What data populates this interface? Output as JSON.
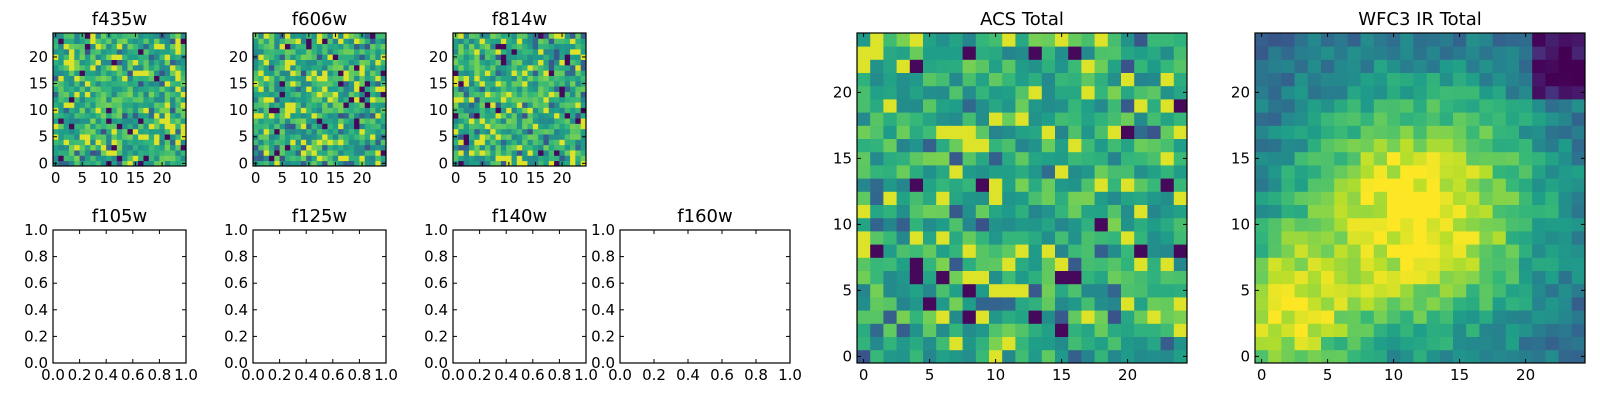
{
  "figure": {
    "title": ""
  },
  "chart_data": [
    {
      "type": "heatmap",
      "title": "f435w",
      "xlim": [
        0,
        24
      ],
      "ylim": [
        0,
        24
      ],
      "xticks": [
        "0",
        "5",
        "10",
        "15",
        "20"
      ],
      "yticks": [
        "0",
        "5",
        "10",
        "15",
        "20"
      ],
      "colormap": "viridis",
      "grid_size": 25,
      "texture": "noisy",
      "seed": 11,
      "empty": false
    },
    {
      "type": "heatmap",
      "title": "f606w",
      "xlim": [
        0,
        24
      ],
      "ylim": [
        0,
        24
      ],
      "xticks": [
        "0",
        "5",
        "10",
        "15",
        "20"
      ],
      "yticks": [
        "0",
        "5",
        "10",
        "15",
        "20"
      ],
      "colormap": "viridis",
      "grid_size": 25,
      "texture": "noisy",
      "seed": 23,
      "empty": false
    },
    {
      "type": "heatmap",
      "title": "f814w",
      "xlim": [
        0,
        24
      ],
      "ylim": [
        0,
        24
      ],
      "xticks": [
        "0",
        "5",
        "10",
        "15",
        "20"
      ],
      "yticks": [
        "0",
        "5",
        "10",
        "15",
        "20"
      ],
      "colormap": "viridis",
      "grid_size": 25,
      "texture": "noisy",
      "seed": 37,
      "empty": false
    },
    {
      "type": "line",
      "title": "f105w",
      "xlim": [
        0.0,
        1.0
      ],
      "ylim": [
        0.0,
        1.0
      ],
      "xticks": [
        "0.0",
        "0.2",
        "0.4",
        "0.6",
        "0.8",
        "1.0"
      ],
      "yticks": [
        "0.0",
        "0.2",
        "0.4",
        "0.6",
        "0.8",
        "1.0"
      ],
      "series": [],
      "empty": true
    },
    {
      "type": "line",
      "title": "f125w",
      "xlim": [
        0.0,
        1.0
      ],
      "ylim": [
        0.0,
        1.0
      ],
      "xticks": [
        "0.0",
        "0.2",
        "0.4",
        "0.6",
        "0.8",
        "1.0"
      ],
      "yticks": [
        "0.0",
        "0.2",
        "0.4",
        "0.6",
        "0.8",
        "1.0"
      ],
      "series": [],
      "empty": true
    },
    {
      "type": "line",
      "title": "f140w",
      "xlim": [
        0.0,
        1.0
      ],
      "ylim": [
        0.0,
        1.0
      ],
      "xticks": [
        "0.0",
        "0.2",
        "0.4",
        "0.6",
        "0.8",
        "1.0"
      ],
      "yticks": [
        "0.0",
        "0.2",
        "0.4",
        "0.6",
        "0.8",
        "1.0"
      ],
      "series": [],
      "empty": true
    },
    {
      "type": "line",
      "title": "f160w",
      "xlim": [
        0.0,
        1.0
      ],
      "ylim": [
        0.0,
        1.0
      ],
      "xticks": [
        "0.0",
        "0.2",
        "0.4",
        "0.6",
        "0.8",
        "1.0"
      ],
      "yticks": [
        "0.0",
        "0.2",
        "0.4",
        "0.6",
        "0.8",
        "1.0"
      ],
      "series": [],
      "empty": true
    },
    {
      "type": "heatmap",
      "title": "ACS Total",
      "xlim": [
        0,
        24
      ],
      "ylim": [
        0,
        24
      ],
      "xticks": [
        "0",
        "5",
        "10",
        "15",
        "20"
      ],
      "yticks": [
        "0",
        "5",
        "10",
        "15",
        "20"
      ],
      "colormap": "viridis",
      "grid_size": 25,
      "texture": "noisy",
      "seed": 53,
      "empty": false
    },
    {
      "type": "heatmap",
      "title": "WFC3 IR Total",
      "xlim": [
        0,
        24
      ],
      "ylim": [
        0,
        24
      ],
      "xticks": [
        "0",
        "5",
        "10",
        "15",
        "20"
      ],
      "yticks": [
        "0",
        "5",
        "10",
        "15",
        "20"
      ],
      "colormap": "viridis",
      "grid_size": 25,
      "texture": "smooth",
      "seed": 71,
      "empty": false
    }
  ]
}
